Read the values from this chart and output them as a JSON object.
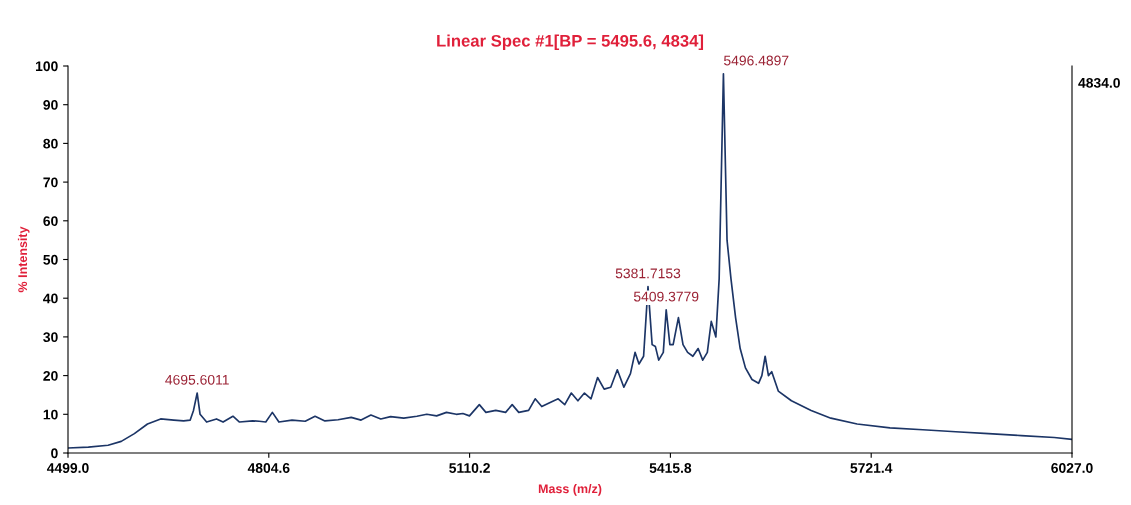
{
  "chart_data": {
    "type": "line",
    "title": "Linear Spec #1[BP = 5495.6, 4834]",
    "xlabel": "Mass (m/z)",
    "ylabel": "% Intensity",
    "x": [
      4499,
      4530,
      4560,
      4580,
      4600,
      4620,
      4640,
      4660,
      4675,
      4685,
      4690,
      4695.6,
      4700,
      4710,
      4725,
      4735,
      4750,
      4760,
      4780,
      4790,
      4800,
      4810,
      4820,
      4840,
      4860,
      4875,
      4890,
      4910,
      4930,
      4945,
      4960,
      4975,
      4990,
      5010,
      5030,
      5045,
      5060,
      5075,
      5090,
      5100,
      5110,
      5125,
      5135,
      5150,
      5165,
      5175,
      5185,
      5200,
      5210,
      5220,
      5232,
      5245,
      5255,
      5265,
      5275,
      5285,
      5295,
      5305,
      5315,
      5325,
      5335,
      5345,
      5355,
      5362,
      5368,
      5375,
      5381.7,
      5388,
      5393,
      5398,
      5405,
      5409.4,
      5415,
      5420,
      5428,
      5435,
      5442,
      5450,
      5458,
      5465,
      5472,
      5478,
      5485,
      5490,
      5496.5,
      5502,
      5508,
      5515,
      5522,
      5530,
      5540,
      5550,
      5555,
      5560,
      5565,
      5570,
      5580,
      5600,
      5630,
      5660,
      5700,
      5750,
      5800,
      5850,
      5900,
      5950,
      6000,
      6027
    ],
    "series": [
      {
        "color": "#1c3566",
        "values": [
          1.3,
          1.5,
          2,
          3,
          5,
          7.5,
          8.8,
          8.5,
          8.3,
          8.5,
          11,
          15.5,
          10,
          8,
          8.8,
          8,
          9.5,
          8,
          8.3,
          8.2,
          8,
          10.5,
          8,
          8.5,
          8.2,
          9.5,
          8.3,
          8.6,
          9.2,
          8.5,
          9.8,
          8.8,
          9.4,
          9,
          9.5,
          10,
          9.6,
          10.5,
          10,
          10.2,
          9.6,
          12.5,
          10.5,
          11,
          10.5,
          12.5,
          10.5,
          11,
          14,
          12,
          13,
          14,
          12.5,
          15.5,
          13.5,
          15.5,
          14,
          19.5,
          16.5,
          17,
          21.5,
          17,
          20.5,
          26,
          23,
          25,
          43,
          28,
          27.5,
          24,
          26,
          37,
          28,
          28,
          35,
          28,
          26,
          25,
          27,
          24,
          26,
          34,
          30,
          45,
          98,
          55,
          45,
          35,
          27,
          22,
          19,
          18,
          20,
          25,
          20,
          21,
          16,
          13.5,
          11,
          9,
          7.5,
          6.5,
          6,
          5.5,
          5,
          4.5,
          4,
          3.5
        ]
      }
    ],
    "xlim": [
      4499,
      6027
    ],
    "xticks": [
      {
        "value": 4499,
        "label": "4499.0"
      },
      {
        "value": 4804.6,
        "label": "4804.6"
      },
      {
        "value": 5110.2,
        "label": "5110.2"
      },
      {
        "value": 5415.8,
        "label": "5415.8"
      },
      {
        "value": 5721.4,
        "label": "5721.4"
      },
      {
        "value": 6027,
        "label": "6027.0"
      }
    ],
    "ylim": [
      0,
      100
    ],
    "yticks": [
      0,
      10,
      20,
      30,
      40,
      50,
      60,
      70,
      80,
      90,
      100
    ],
    "annotations": [
      "4834.0",
      {
        "text": "4695.6011",
        "x": 4695.6,
        "y": 15.5
      },
      {
        "text": "5381.7153",
        "x": 5381.7,
        "y": 43
      },
      {
        "text": "5409.3779",
        "x": 5409.4,
        "y": 37
      },
      {
        "text": "5496.4897",
        "x": 5496.5,
        "y": 98
      }
    ],
    "grid": false,
    "legend": false
  }
}
